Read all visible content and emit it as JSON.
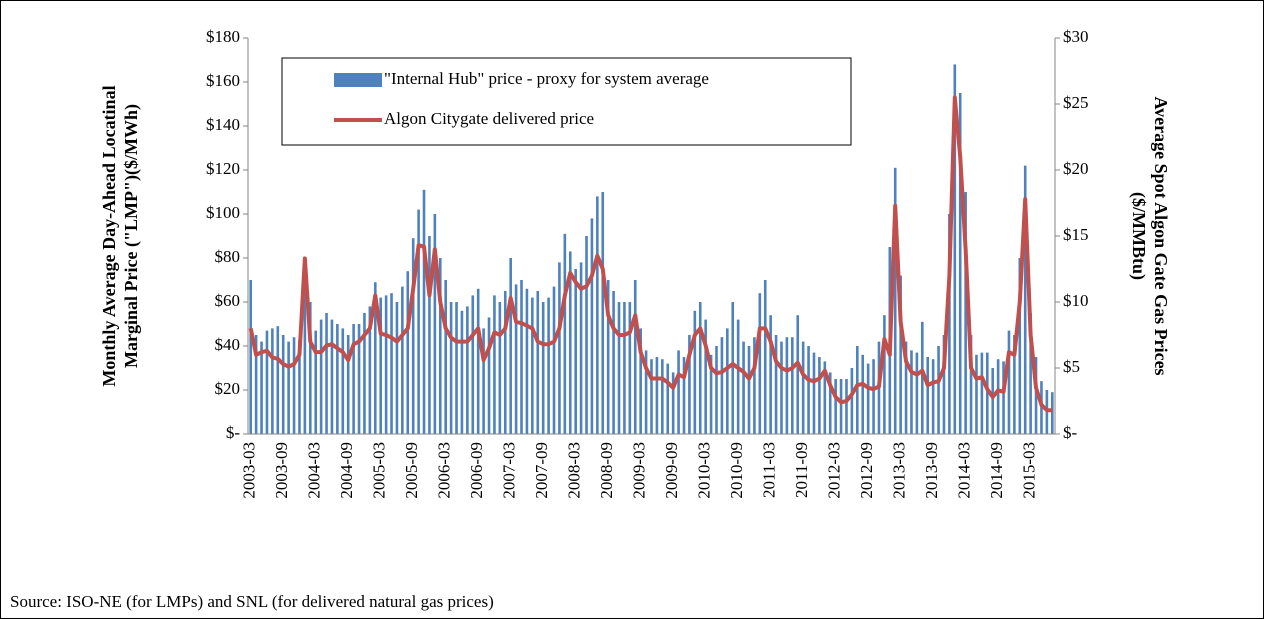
{
  "chart_data": {
    "type": "bar_line",
    "y_label": [
      "Monthly Average Day-Ahead Locatinal",
      "Marginal Price (\"LMP\")($/MWh)"
    ],
    "y2_label": [
      "Average Spot Algon Gate Gas Prices",
      "($/MMBtu)"
    ],
    "source": "Source: ISO-NE (for LMPs) and SNL (for delivered natural gas prices)",
    "legend": "upper left",
    "categories": [
      "2003-03",
      null,
      null,
      null,
      null,
      null,
      "2003-09",
      null,
      null,
      null,
      null,
      null,
      "2004-03",
      null,
      null,
      null,
      null,
      null,
      "2004-09",
      null,
      null,
      null,
      null,
      null,
      "2005-03",
      null,
      null,
      null,
      null,
      null,
      "2005-09",
      null,
      null,
      null,
      null,
      null,
      "2006-03",
      null,
      null,
      null,
      null,
      null,
      "2006-09",
      null,
      null,
      null,
      null,
      null,
      "2007-03",
      null,
      null,
      null,
      null,
      null,
      "2007-09",
      null,
      null,
      null,
      null,
      null,
      "2008-03",
      null,
      null,
      null,
      null,
      null,
      "2008-09",
      null,
      null,
      null,
      null,
      null,
      "2009-03",
      null,
      null,
      null,
      null,
      null,
      "2009-09",
      null,
      null,
      null,
      null,
      null,
      "2010-03",
      null,
      null,
      null,
      null,
      null,
      "2010-09",
      null,
      null,
      null,
      null,
      null,
      "2011-03",
      null,
      null,
      null,
      null,
      null,
      "2011-09",
      null,
      null,
      null,
      null,
      null,
      "2012-03",
      null,
      null,
      null,
      null,
      null,
      "2012-09",
      null,
      null,
      null,
      null,
      null,
      "2013-03",
      null,
      null,
      null,
      null,
      null,
      "2013-09",
      null,
      null,
      null,
      null,
      null,
      "2014-03",
      null,
      null,
      null,
      null,
      null,
      "2014-09",
      null,
      null,
      null,
      null,
      null,
      "2015-03",
      null,
      null,
      null,
      null
    ],
    "series": [
      {
        "name": "\"Internal Hub\" price - proxy for system average",
        "type": "bar",
        "color": "#4f81bd",
        "axis": "y",
        "values": [
          70,
          45,
          42,
          47,
          48,
          49,
          45,
          42,
          44,
          43,
          80,
          60,
          47,
          52,
          55,
          52,
          50,
          48,
          45,
          50,
          50,
          55,
          58,
          69,
          62,
          63,
          64,
          60,
          67,
          74,
          89,
          102,
          111,
          90,
          100,
          80,
          70,
          60,
          60,
          56,
          58,
          63,
          66,
          48,
          53,
          63,
          60,
          65,
          80,
          68,
          70,
          66,
          62,
          65,
          60,
          62,
          67,
          78,
          91,
          83,
          75,
          78,
          90,
          98,
          108,
          110,
          70,
          65,
          60,
          60,
          60,
          70,
          48,
          38,
          34,
          35,
          34,
          32,
          28,
          38,
          35,
          45,
          56,
          60,
          52,
          36,
          40,
          44,
          48,
          60,
          52,
          42,
          40,
          44,
          64,
          70,
          54,
          45,
          42,
          44,
          44,
          54,
          42,
          40,
          37,
          35,
          33,
          28,
          25,
          25,
          25,
          30,
          40,
          36,
          32,
          34,
          42,
          54,
          85,
          121,
          72,
          42,
          38,
          37,
          51,
          35,
          34,
          40,
          45,
          100,
          168,
          155,
          110,
          45,
          36,
          37,
          37,
          30,
          34,
          33,
          47,
          45,
          80,
          122,
          55,
          35,
          24,
          20,
          19
        ]
      },
      {
        "name": "Algon Citygate delivered price",
        "type": "line",
        "color": "#c0504d",
        "axis": "y2",
        "values": [
          8,
          6,
          6.2,
          6.3,
          5.8,
          5.7,
          5.3,
          5.1,
          5.3,
          6,
          13.3,
          7,
          6.2,
          6.2,
          6.7,
          6.8,
          6.5,
          6.2,
          5.6,
          6.8,
          7,
          7.5,
          8,
          10.5,
          7.6,
          7.5,
          7.3,
          7,
          7.5,
          8,
          11,
          14.3,
          14.2,
          10.5,
          14,
          10,
          8,
          7.3,
          7,
          7,
          7,
          7.5,
          8,
          5.6,
          6.5,
          7.7,
          7.5,
          8,
          10.3,
          8.5,
          8.4,
          8.2,
          8,
          7,
          6.8,
          6.8,
          7,
          8,
          10.5,
          12.2,
          11.5,
          11,
          11.2,
          12,
          13.5,
          12.5,
          9,
          8,
          7.5,
          7.5,
          7.7,
          9,
          6.2,
          5,
          4.2,
          4.2,
          4.2,
          3.9,
          3.5,
          4.5,
          4.3,
          6,
          7.5,
          8,
          6.7,
          5,
          4.6,
          4.7,
          5,
          5.3,
          5,
          4.7,
          4.2,
          5,
          8,
          8,
          7,
          5.5,
          5,
          4.8,
          5,
          5.4,
          4.5,
          4.1,
          4,
          4.2,
          4.8,
          3.7,
          2.8,
          2.4,
          2.5,
          3,
          3.7,
          3.8,
          3.5,
          3.4,
          3.6,
          7.2,
          6,
          17.3,
          8.5,
          5.5,
          4.7,
          4.5,
          4.8,
          3.7,
          3.9,
          4,
          5,
          12,
          25.5,
          21,
          14,
          5,
          4.2,
          4.3,
          3.4,
          2.8,
          3.3,
          3.2,
          6.2,
          6,
          10,
          17.8,
          7.5,
          3.5,
          2.2,
          1.8,
          1.8
        ]
      }
    ],
    "ylim": [
      0,
      180
    ],
    "yticks": [
      {
        "value": 0,
        "label": "$-"
      },
      {
        "value": 20,
        "label": "$20"
      },
      {
        "value": 40,
        "label": "$40"
      },
      {
        "value": 60,
        "label": "$60"
      },
      {
        "value": 80,
        "label": "$80"
      },
      {
        "value": 100,
        "label": "$100"
      },
      {
        "value": 120,
        "label": "$120"
      },
      {
        "value": 140,
        "label": "$140"
      },
      {
        "value": 160,
        "label": "$160"
      },
      {
        "value": 180,
        "label": "$180"
      }
    ],
    "y2lim": [
      0,
      30
    ],
    "y2ticks": [
      {
        "value": 0,
        "label": "$-"
      },
      {
        "value": 5,
        "label": "$5"
      },
      {
        "value": 10,
        "label": "$10"
      },
      {
        "value": 15,
        "label": "$15"
      },
      {
        "value": 20,
        "label": "$20"
      },
      {
        "value": 25,
        "label": "$25"
      },
      {
        "value": 30,
        "label": "$30"
      }
    ]
  }
}
